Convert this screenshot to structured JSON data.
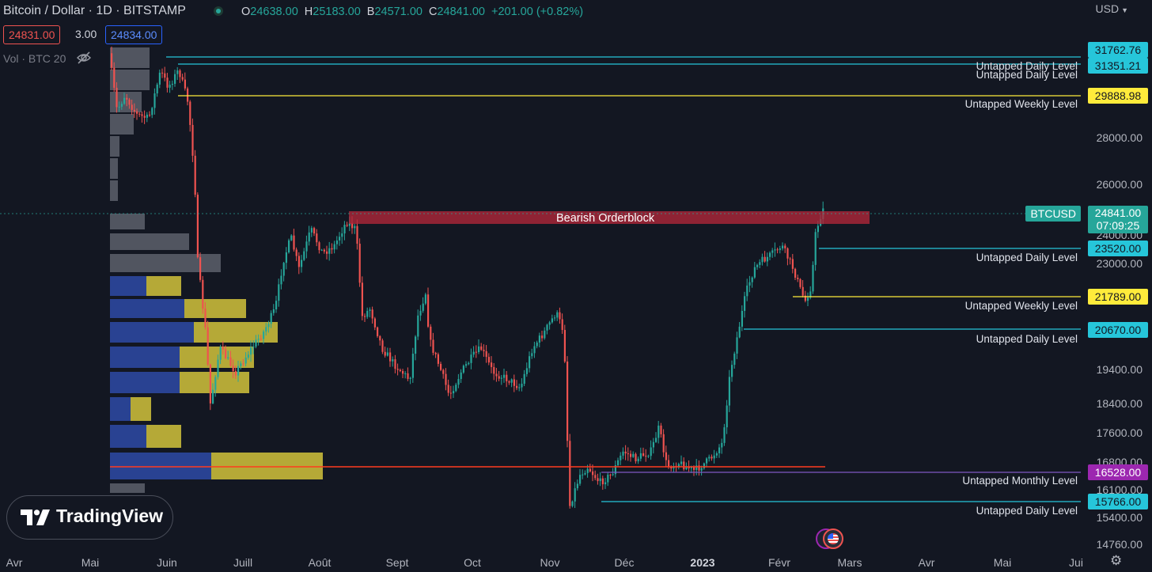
{
  "header": {
    "symbol_title": "Bitcoin / Dollar · 1D · BITSTAMP",
    "ohlc": {
      "o_label": "O",
      "o_value": "24638.00",
      "h_label": "H",
      "h_value": "25183.00",
      "b_label": "B",
      "b_value": "24571.00",
      "c_label": "C",
      "c_value": "24841.00",
      "change": "+201.00 (+0.82%)"
    },
    "sell_price": "24831.00",
    "spread": "3.00",
    "buy_price": "24834.00",
    "volume_label": "Vol · BTC 20",
    "currency": "USD"
  },
  "watermark": {
    "brand": "TradingView"
  },
  "colors": {
    "background": "#131722",
    "up": "#26a69a",
    "down": "#ef5350",
    "cyan_level": "#26c6da",
    "yellow_level": "#ffeb3b",
    "purple_level": "#7e57c2",
    "orderblock": "#b2263a"
  },
  "orderblock": {
    "label": "Bearish Orderblock"
  },
  "levels": [
    {
      "price": "31762.76",
      "label": "",
      "color": "cyan"
    },
    {
      "price": "31351.21",
      "label": "Untapped Daily Level",
      "color": "cyan"
    },
    {
      "price": "",
      "label": "Untapped Daily Level",
      "color": "cyan"
    },
    {
      "price": "29888.98",
      "label": "Untapped Weekly Level",
      "color": "yellow"
    },
    {
      "price": "23520.00",
      "label": "Untapped Daily Level",
      "color": "cyan"
    },
    {
      "price": "21789.00",
      "label": "Untapped Weekly Level",
      "color": "yellow"
    },
    {
      "price": "20670.00",
      "label": "Untapped Daily Level",
      "color": "cyan"
    },
    {
      "price": "16528.00",
      "label": "Untapped Monthly Level",
      "color": "purple"
    },
    {
      "price": "15766.00",
      "label": "Untapped Daily Level",
      "color": "cyan"
    }
  ],
  "current_price": {
    "symbol": "BTCUSD",
    "price": "24841.00",
    "countdown": "07:09:25"
  },
  "y_axis_ticks": [
    "28000.00",
    "26000.00",
    "24000.00",
    "23000.00",
    "19400.00",
    "18400.00",
    "17600.00",
    "16800.00",
    "16100.00",
    "15400.00",
    "14760.00"
  ],
  "x_axis_ticks": [
    "Avr",
    "Mai",
    "Juin",
    "Juill",
    "Août",
    "Sept",
    "Oct",
    "Nov",
    "Déc",
    "2023",
    "Févr",
    "Mars",
    "Avr",
    "Mai",
    "Jui"
  ]
}
